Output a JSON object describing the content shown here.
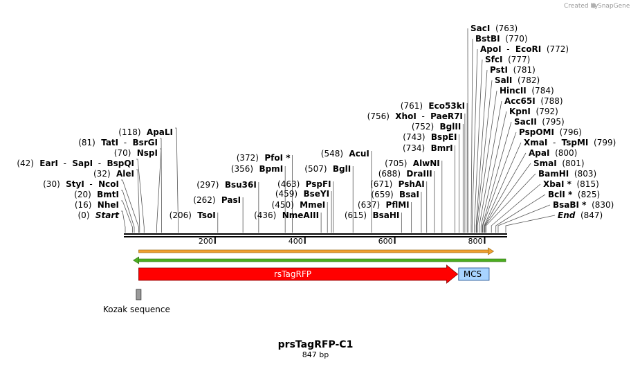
{
  "credit": {
    "text": "Created by",
    "brand": "SnapGene"
  },
  "plasmid": {
    "name": "prsTagRFP-C1",
    "length_label": "847 bp",
    "length": 847
  },
  "ruler": {
    "ticks": [
      {
        "pos": 200,
        "label": "200"
      },
      {
        "pos": 400,
        "label": "400"
      },
      {
        "pos": 600,
        "label": "600"
      },
      {
        "pos": 800,
        "label": "800"
      }
    ]
  },
  "features": {
    "primer_fwd": {
      "start": 30,
      "end": 820,
      "color": "#f0a030"
    },
    "primer_rev": {
      "start": 18,
      "end": 847,
      "color": "#4caf20"
    },
    "rsTagRFP": {
      "label": "rsTagRFP",
      "start": 30,
      "end": 740,
      "color": "#ff0000"
    },
    "MCS": {
      "label": "MCS",
      "start": 742,
      "end": 810,
      "color": "#a8d4ff"
    },
    "kozak": {
      "label": "Kozak sequence",
      "start": 26,
      "end": 36,
      "color": "#9a9a9a"
    }
  },
  "left_sites": [
    {
      "parts": [
        {
          "t": "(0)",
          "c": "num"
        },
        {
          "t": "Start",
          "c": "ital"
        }
      ],
      "pos": 0,
      "align": "right"
    },
    {
      "parts": [
        {
          "t": "(16)",
          "c": "num"
        },
        {
          "t": "NheI",
          "c": "enz"
        }
      ],
      "pos": 16,
      "align": "right"
    },
    {
      "parts": [
        {
          "t": "(20)",
          "c": "num"
        },
        {
          "t": "BmtI",
          "c": "enz"
        }
      ],
      "pos": 20,
      "align": "right"
    },
    {
      "parts": [
        {
          "t": "(30)",
          "c": "num"
        },
        {
          "t": "StyI",
          "c": "enz"
        },
        {
          "t": "-",
          "c": "num"
        },
        {
          "t": "NcoI",
          "c": "enz"
        }
      ],
      "pos": 30,
      "align": "right"
    },
    {
      "parts": [
        {
          "t": "(32)",
          "c": "num"
        },
        {
          "t": "AleI",
          "c": "enz"
        }
      ],
      "pos": 32,
      "align": "right"
    },
    {
      "parts": [
        {
          "t": "(42)",
          "c": "num"
        },
        {
          "t": "EarI",
          "c": "enz"
        },
        {
          "t": "-",
          "c": "num"
        },
        {
          "t": "SapI",
          "c": "enz"
        },
        {
          "t": "-",
          "c": "num"
        },
        {
          "t": "BspQI",
          "c": "enz"
        }
      ],
      "pos": 42,
      "align": "right"
    },
    {
      "parts": [
        {
          "t": "(70)",
          "c": "num"
        },
        {
          "t": "NspI",
          "c": "enz"
        }
      ],
      "pos": 70,
      "align": "right"
    },
    {
      "parts": [
        {
          "t": "(81)",
          "c": "num"
        },
        {
          "t": "TatI",
          "c": "enz"
        },
        {
          "t": "-",
          "c": "num"
        },
        {
          "t": "BsrGI",
          "c": "enz"
        }
      ],
      "pos": 81,
      "align": "right"
    },
    {
      "parts": [
        {
          "t": "(118)",
          "c": "num"
        },
        {
          "t": "ApaLI",
          "c": "enz"
        }
      ],
      "pos": 118,
      "align": "right"
    }
  ],
  "middle_sites": [
    {
      "parts": [
        {
          "t": "(206)",
          "c": "num"
        },
        {
          "t": "TsoI",
          "c": "enz"
        }
      ],
      "pos": 206
    },
    {
      "parts": [
        {
          "t": "(262)",
          "c": "num"
        },
        {
          "t": "PasI",
          "c": "enz"
        }
      ],
      "pos": 262
    },
    {
      "parts": [
        {
          "t": "(297)",
          "c": "num"
        },
        {
          "t": "Bsu36I",
          "c": "enz"
        }
      ],
      "pos": 297
    },
    {
      "parts": [
        {
          "t": "(356)",
          "c": "num"
        },
        {
          "t": "BpmI",
          "c": "enz"
        }
      ],
      "pos": 356
    },
    {
      "parts": [
        {
          "t": "(372)",
          "c": "num"
        },
        {
          "t": "PfoI *",
          "c": "enz"
        }
      ],
      "pos": 372
    },
    {
      "parts": [
        {
          "t": "(436)",
          "c": "num"
        },
        {
          "t": "NmeAIII",
          "c": "enz"
        }
      ],
      "pos": 436
    },
    {
      "parts": [
        {
          "t": "(450)",
          "c": "num"
        },
        {
          "t": "MmeI",
          "c": "enz"
        }
      ],
      "pos": 450
    },
    {
      "parts": [
        {
          "t": "(459)",
          "c": "num"
        },
        {
          "t": "BseYI",
          "c": "enz"
        }
      ],
      "pos": 459
    },
    {
      "parts": [
        {
          "t": "(463)",
          "c": "num"
        },
        {
          "t": "PspFI",
          "c": "enz"
        }
      ],
      "pos": 463
    },
    {
      "parts": [
        {
          "t": "(507)",
          "c": "num"
        },
        {
          "t": "BglI",
          "c": "enz"
        }
      ],
      "pos": 507
    },
    {
      "parts": [
        {
          "t": "(548)",
          "c": "num"
        },
        {
          "t": "AcuI",
          "c": "enz"
        }
      ],
      "pos": 548
    },
    {
      "parts": [
        {
          "t": "(615)",
          "c": "num"
        },
        {
          "t": "BsaHI",
          "c": "enz"
        }
      ],
      "pos": 615
    },
    {
      "parts": [
        {
          "t": "(637)",
          "c": "num"
        },
        {
          "t": "PflMI",
          "c": "enz"
        }
      ],
      "pos": 637
    },
    {
      "parts": [
        {
          "t": "(659)",
          "c": "num"
        },
        {
          "t": "BsaI",
          "c": "enz"
        }
      ],
      "pos": 659
    },
    {
      "parts": [
        {
          "t": "(671)",
          "c": "num"
        },
        {
          "t": "PshAI",
          "c": "enz"
        }
      ],
      "pos": 671
    },
    {
      "parts": [
        {
          "t": "(688)",
          "c": "num"
        },
        {
          "t": "DraIII",
          "c": "enz"
        }
      ],
      "pos": 688
    },
    {
      "parts": [
        {
          "t": "(705)",
          "c": "num"
        },
        {
          "t": "AlwNI",
          "c": "enz"
        }
      ],
      "pos": 705
    },
    {
      "parts": [
        {
          "t": "(734)",
          "c": "num"
        },
        {
          "t": "BmrI",
          "c": "enz"
        }
      ],
      "pos": 734
    },
    {
      "parts": [
        {
          "t": "(743)",
          "c": "num"
        },
        {
          "t": "BspEI",
          "c": "enz"
        }
      ],
      "pos": 743
    },
    {
      "parts": [
        {
          "t": "(752)",
          "c": "num"
        },
        {
          "t": "BglII",
          "c": "enz"
        }
      ],
      "pos": 752
    },
    {
      "parts": [
        {
          "t": "(756)",
          "c": "num"
        },
        {
          "t": "XhoI",
          "c": "enz"
        },
        {
          "t": "-",
          "c": "num"
        },
        {
          "t": "PaeR7I",
          "c": "enz"
        }
      ],
      "pos": 756
    },
    {
      "parts": [
        {
          "t": "(761)",
          "c": "num"
        },
        {
          "t": "Eco53kI",
          "c": "enz"
        }
      ],
      "pos": 761
    }
  ],
  "right_sites": [
    {
      "parts": [
        {
          "t": "SacI",
          "c": "enz"
        },
        {
          "t": "(763)",
          "c": "num"
        }
      ],
      "pos": 763
    },
    {
      "parts": [
        {
          "t": "BstBI",
          "c": "enz"
        },
        {
          "t": "(770)",
          "c": "num"
        }
      ],
      "pos": 770
    },
    {
      "parts": [
        {
          "t": "ApoI",
          "c": "enz"
        },
        {
          "t": "-",
          "c": "num"
        },
        {
          "t": "EcoRI",
          "c": "enz"
        },
        {
          "t": "(772)",
          "c": "num"
        }
      ],
      "pos": 772
    },
    {
      "parts": [
        {
          "t": "SfcI",
          "c": "enz"
        },
        {
          "t": "(777)",
          "c": "num"
        }
      ],
      "pos": 777
    },
    {
      "parts": [
        {
          "t": "PstI",
          "c": "enz"
        },
        {
          "t": "(781)",
          "c": "num"
        }
      ],
      "pos": 781
    },
    {
      "parts": [
        {
          "t": "SalI",
          "c": "enz"
        },
        {
          "t": "(782)",
          "c": "num"
        }
      ],
      "pos": 782
    },
    {
      "parts": [
        {
          "t": "HincII",
          "c": "enz"
        },
        {
          "t": "(784)",
          "c": "num"
        }
      ],
      "pos": 784
    },
    {
      "parts": [
        {
          "t": "Acc65I",
          "c": "enz"
        },
        {
          "t": "(788)",
          "c": "num"
        }
      ],
      "pos": 788
    },
    {
      "parts": [
        {
          "t": "KpnI",
          "c": "enz"
        },
        {
          "t": "(792)",
          "c": "num"
        }
      ],
      "pos": 792
    },
    {
      "parts": [
        {
          "t": "SacII",
          "c": "enz"
        },
        {
          "t": "(795)",
          "c": "num"
        }
      ],
      "pos": 795
    },
    {
      "parts": [
        {
          "t": "PspOMI",
          "c": "enz"
        },
        {
          "t": "(796)",
          "c": "num"
        }
      ],
      "pos": 796
    },
    {
      "parts": [
        {
          "t": "XmaI",
          "c": "enz"
        },
        {
          "t": "-",
          "c": "num"
        },
        {
          "t": "TspMI",
          "c": "enz"
        },
        {
          "t": "(799)",
          "c": "num"
        }
      ],
      "pos": 799
    },
    {
      "parts": [
        {
          "t": "ApaI",
          "c": "enz"
        },
        {
          "t": "(800)",
          "c": "num"
        }
      ],
      "pos": 800
    },
    {
      "parts": [
        {
          "t": "SmaI",
          "c": "enz"
        },
        {
          "t": "(801)",
          "c": "num"
        }
      ],
      "pos": 801
    },
    {
      "parts": [
        {
          "t": "BamHI",
          "c": "enz"
        },
        {
          "t": "(803)",
          "c": "num"
        }
      ],
      "pos": 803
    },
    {
      "parts": [
        {
          "t": "XbaI *",
          "c": "enz"
        },
        {
          "t": "(815)",
          "c": "num"
        }
      ],
      "pos": 815
    },
    {
      "parts": [
        {
          "t": "BclI *",
          "c": "enz"
        },
        {
          "t": "(825)",
          "c": "num"
        }
      ],
      "pos": 825
    },
    {
      "parts": [
        {
          "t": "BsaBI *",
          "c": "enz"
        },
        {
          "t": "(830)",
          "c": "num"
        }
      ],
      "pos": 830
    },
    {
      "parts": [
        {
          "t": "End",
          "c": "ital"
        },
        {
          "t": "(847)",
          "c": "num"
        }
      ],
      "pos": 847
    }
  ]
}
